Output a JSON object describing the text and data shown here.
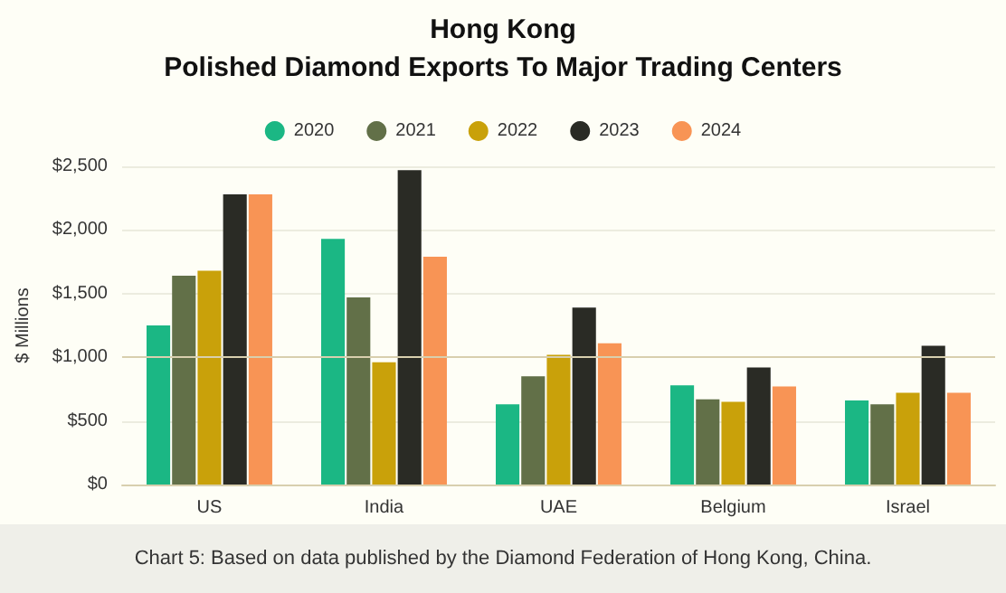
{
  "chart_data": {
    "type": "bar",
    "title": "Hong Kong",
    "subtitle": "Polished Diamond Exports To Major Trading Centers",
    "ylabel": "$ Millions",
    "categories": [
      "US",
      "India",
      "UAE",
      "Belgium",
      "Israel"
    ],
    "series": [
      {
        "name": "2020",
        "color": "#1bb784",
        "values": [
          1250,
          1930,
          630,
          780,
          660
        ]
      },
      {
        "name": "2021",
        "color": "#627048",
        "values": [
          1640,
          1470,
          850,
          670,
          630
        ]
      },
      {
        "name": "2022",
        "color": "#c9a10a",
        "values": [
          1680,
          960,
          1020,
          650,
          720
        ]
      },
      {
        "name": "2023",
        "color": "#2a2b25",
        "values": [
          2280,
          2470,
          1390,
          920,
          1090
        ]
      },
      {
        "name": "2024",
        "color": "#f89455",
        "values": [
          2280,
          1790,
          1110,
          770,
          720
        ]
      }
    ],
    "ylim": [
      0,
      2500
    ],
    "yticks": [
      {
        "value": 0,
        "label": "$0"
      },
      {
        "value": 500,
        "label": "$500"
      },
      {
        "value": 1000,
        "label": "$1,000"
      },
      {
        "value": 1500,
        "label": "$1,500"
      },
      {
        "value": 2000,
        "label": "$2,000"
      },
      {
        "value": 2500,
        "label": "$2,500"
      }
    ],
    "ref_lines": [
      {
        "axis": "y",
        "value": 1000,
        "color": "#d8cfae"
      }
    ],
    "grid": "y",
    "legend": "top",
    "annotations": [
      "Chart 5: Based on data published by the Diamond Federation of Hong Kong, China."
    ]
  }
}
